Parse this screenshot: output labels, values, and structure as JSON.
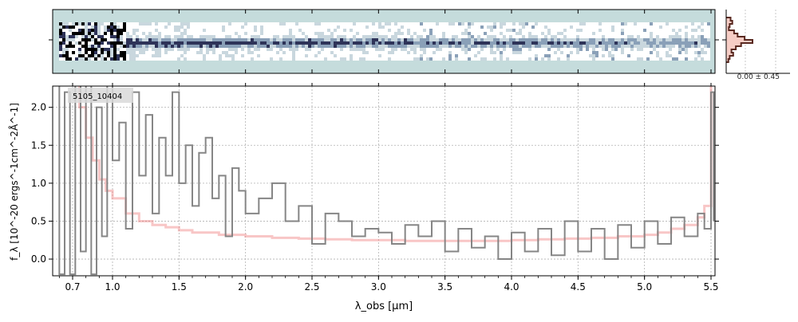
{
  "chart_data": [
    {
      "id": "spectrum_2d",
      "type": "heatmap",
      "description_source": "2D spectrum image strip",
      "background_color": "#c5dcdc",
      "colormap": [
        "#ffffff",
        "#c9d7de",
        "#8aa0b8",
        "#2e3358",
        "#000000"
      ]
    },
    {
      "id": "spectrum_1d",
      "type": "line",
      "label": "5105_10404",
      "xlabel": "λ_obs [μm]",
      "ylabel": "f_λ [10^-20 ergs^-1cm^-2Å^-1]",
      "xticks": [
        {
          "value": 0.7,
          "label": "0.7"
        },
        {
          "value": 1.0,
          "label": "1.0"
        },
        {
          "value": 1.5,
          "label": "1.5"
        },
        {
          "value": 2.0,
          "label": "2.0"
        },
        {
          "value": 2.5,
          "label": "2.5"
        },
        {
          "value": 3.0,
          "label": "3.0"
        },
        {
          "value": 3.5,
          "label": "3.5"
        },
        {
          "value": 4.0,
          "label": "4.0"
        },
        {
          "value": 4.5,
          "label": "4.5"
        },
        {
          "value": 5.0,
          "label": "5.0"
        },
        {
          "value": 5.5,
          "label": "5.5"
        }
      ],
      "xlim": [
        0.55,
        5.53
      ],
      "yticks": [
        0.0,
        0.5,
        1.0,
        1.5,
        2.0
      ],
      "ytick_labels": [
        "0.0",
        "0.5",
        "1.0",
        "1.5",
        "2.0"
      ],
      "ylim": [
        -0.22,
        2.28
      ],
      "grid": true,
      "series": [
        {
          "style": "step",
          "color": "#808080",
          "x": [
            0.56,
            0.6,
            0.64,
            0.68,
            0.72,
            0.76,
            0.8,
            0.84,
            0.88,
            0.92,
            0.96,
            1.0,
            1.05,
            1.1,
            1.15,
            1.2,
            1.25,
            1.3,
            1.35,
            1.4,
            1.45,
            1.5,
            1.55,
            1.6,
            1.65,
            1.7,
            1.75,
            1.8,
            1.85,
            1.9,
            1.95,
            2.0,
            2.1,
            2.2,
            2.3,
            2.4,
            2.5,
            2.6,
            2.7,
            2.8,
            2.9,
            3.0,
            3.1,
            3.2,
            3.3,
            3.4,
            3.5,
            3.6,
            3.7,
            3.8,
            3.9,
            4.0,
            4.1,
            4.2,
            4.3,
            4.4,
            4.5,
            4.6,
            4.7,
            4.8,
            4.9,
            5.0,
            5.1,
            5.2,
            5.3,
            5.4,
            5.45,
            5.5,
            5.52
          ],
          "y": [
            2.3,
            -0.2,
            2.2,
            -0.2,
            2.3,
            0.1,
            2.3,
            -0.2,
            2.0,
            0.3,
            2.3,
            1.3,
            1.8,
            0.4,
            2.2,
            1.1,
            1.9,
            0.6,
            1.6,
            1.1,
            2.2,
            1.0,
            1.5,
            0.7,
            1.4,
            1.6,
            0.8,
            1.1,
            0.3,
            1.2,
            0.9,
            0.6,
            0.8,
            1.0,
            0.5,
            0.7,
            0.2,
            0.6,
            0.5,
            0.3,
            0.4,
            0.35,
            0.2,
            0.45,
            0.3,
            0.5,
            0.1,
            0.4,
            0.15,
            0.3,
            0.0,
            0.35,
            0.1,
            0.4,
            0.05,
            0.5,
            0.1,
            0.4,
            0.0,
            0.45,
            0.15,
            0.5,
            0.2,
            0.55,
            0.3,
            0.6,
            0.4,
            2.2,
            0.5
          ]
        },
        {
          "style": "step",
          "color": "#f08080",
          "x": [
            0.56,
            0.6,
            0.65,
            0.7,
            0.75,
            0.8,
            0.85,
            0.9,
            0.95,
            1.0,
            1.1,
            1.2,
            1.3,
            1.4,
            1.5,
            1.6,
            1.8,
            2.0,
            2.2,
            2.4,
            2.6,
            2.8,
            3.0,
            3.2,
            3.4,
            3.6,
            3.8,
            4.0,
            4.2,
            4.4,
            4.6,
            4.8,
            5.0,
            5.1,
            5.2,
            5.3,
            5.4,
            5.45,
            5.5,
            5.52
          ],
          "y": [
            2.3,
            2.3,
            2.3,
            2.3,
            2.0,
            1.6,
            1.3,
            1.05,
            0.9,
            0.8,
            0.6,
            0.5,
            0.45,
            0.42,
            0.38,
            0.35,
            0.32,
            0.3,
            0.28,
            0.27,
            0.26,
            0.25,
            0.25,
            0.24,
            0.24,
            0.24,
            0.24,
            0.25,
            0.26,
            0.27,
            0.28,
            0.3,
            0.32,
            0.35,
            0.4,
            0.45,
            0.55,
            0.7,
            2.3,
            2.3
          ]
        }
      ]
    },
    {
      "id": "residual_histogram",
      "type": "bar",
      "label": "0.00 ± 0.45"
    }
  ]
}
